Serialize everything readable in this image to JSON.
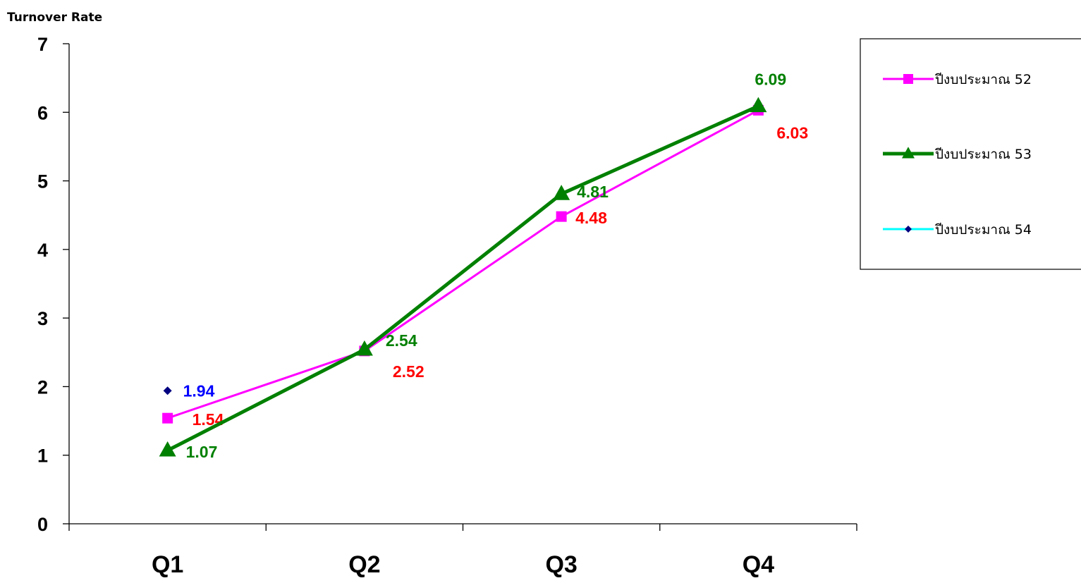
{
  "chart_data": {
    "type": "line",
    "ylabel": "Turnover Rate",
    "xlabel": "",
    "categories": [
      "Q1",
      "Q2",
      "Q3",
      "Q4"
    ],
    "ylim": [
      0,
      7
    ],
    "yticks": [
      0,
      1,
      2,
      3,
      4,
      5,
      6,
      7
    ],
    "grid": false,
    "legend_position": "right",
    "series": [
      {
        "name": "ปีงบประมาณ 52",
        "values": [
          1.54,
          2.52,
          4.48,
          6.03
        ],
        "data_labels": [
          "1.54",
          "2.52",
          "4.48",
          "6.03"
        ],
        "line_color": "#ff00ff",
        "marker": "square",
        "marker_color": "#ff00ff",
        "label_color": "#ff0000"
      },
      {
        "name": "ปีงบประมาณ 53",
        "values": [
          1.07,
          2.54,
          4.81,
          6.09
        ],
        "data_labels": [
          "1.07",
          "2.54",
          "4.81",
          "6.09"
        ],
        "line_color": "#008000",
        "marker": "triangle",
        "marker_color": "#008000",
        "label_color": "#008000"
      },
      {
        "name": "ปีงบประมาณ 54",
        "values": [
          1.94,
          null,
          null,
          null
        ],
        "data_labels": [
          "1.94",
          null,
          null,
          null
        ],
        "line_color": "#00ffff",
        "marker": "diamond",
        "marker_color": "#000080",
        "label_color": "#0000ff"
      }
    ]
  }
}
